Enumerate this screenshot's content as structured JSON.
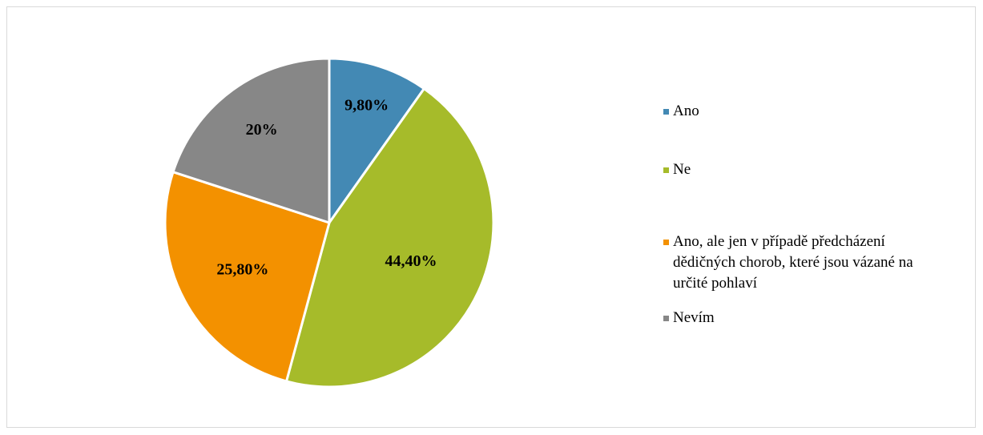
{
  "chart_data": {
    "type": "pie",
    "title": "",
    "start": "top, clockwise",
    "slices": [
      {
        "label": "Ano",
        "value": 9.8,
        "display": "9,80%",
        "color": "#4389b4"
      },
      {
        "label": "Ne",
        "value": 44.4,
        "display": "44,40%",
        "color": "#a6bb2a"
      },
      {
        "label": "Ano, ale jen v případě předcházení dědičných chorob, které jsou vázané na určité pohlaví",
        "value": 25.8,
        "display": "25,80%",
        "color": "#f39100"
      },
      {
        "label": "Nevím",
        "value": 20,
        "display": "20%",
        "color": "#878787"
      }
    ],
    "legend_position": "right"
  }
}
